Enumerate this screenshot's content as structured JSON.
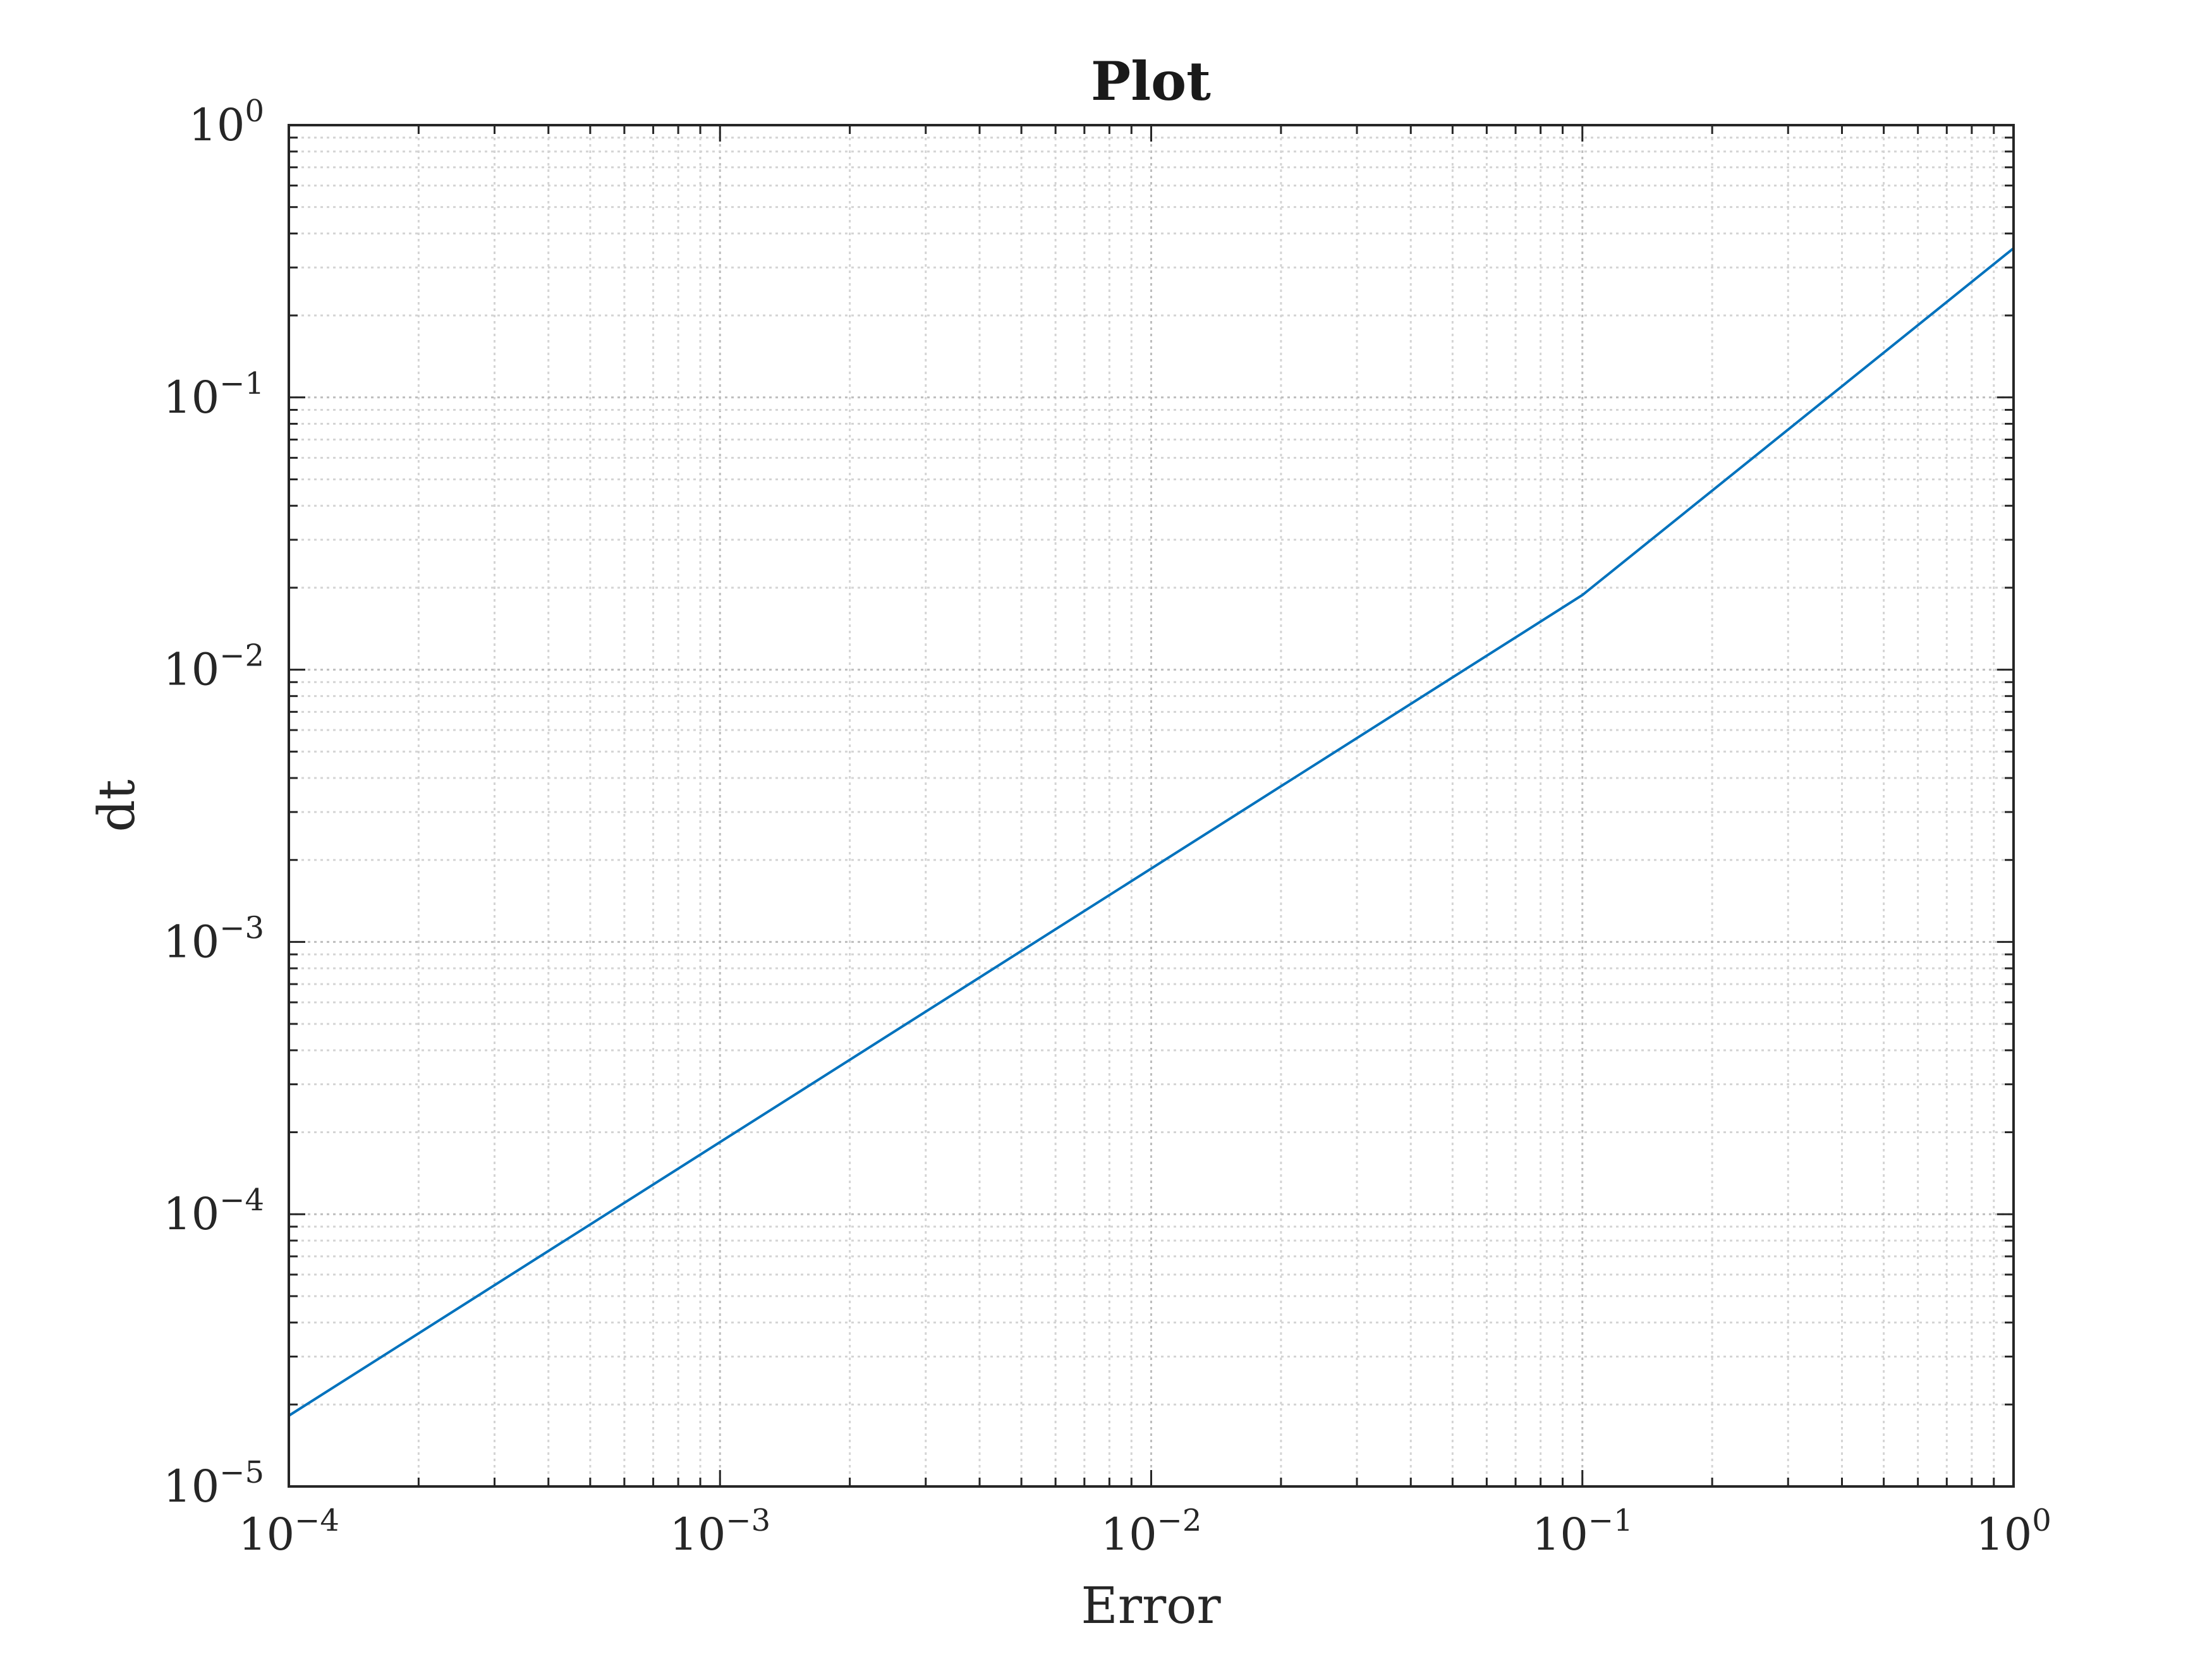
{
  "chart_data": {
    "type": "line",
    "title": "Plot",
    "xlabel": "Error",
    "ylabel": "dt",
    "xscale": "log",
    "yscale": "log",
    "xlim": [
      0.0001,
      1
    ],
    "ylim": [
      1e-05,
      1
    ],
    "grid": true,
    "minor_grid": true,
    "x_ticks": [
      {
        "base": "10",
        "exp": "−4",
        "value": 0.0001
      },
      {
        "base": "10",
        "exp": "−3",
        "value": 0.001
      },
      {
        "base": "10",
        "exp": "−2",
        "value": 0.01
      },
      {
        "base": "10",
        "exp": "−1",
        "value": 0.1
      },
      {
        "base": "10",
        "exp": "0",
        "value": 1
      }
    ],
    "y_ticks": [
      {
        "base": "10",
        "exp": "−5",
        "value": 1e-05
      },
      {
        "base": "10",
        "exp": "−4",
        "value": 0.0001
      },
      {
        "base": "10",
        "exp": "−3",
        "value": 0.001
      },
      {
        "base": "10",
        "exp": "−2",
        "value": 0.01
      },
      {
        "base": "10",
        "exp": "−1",
        "value": 0.1
      },
      {
        "base": "10",
        "exp": "0",
        "value": 1
      }
    ],
    "series": [
      {
        "color": "#0072bd",
        "x": [
          0.0001,
          0.1,
          1
        ],
        "y": [
          1.82e-05,
          0.0188,
          0.353
        ]
      }
    ]
  }
}
